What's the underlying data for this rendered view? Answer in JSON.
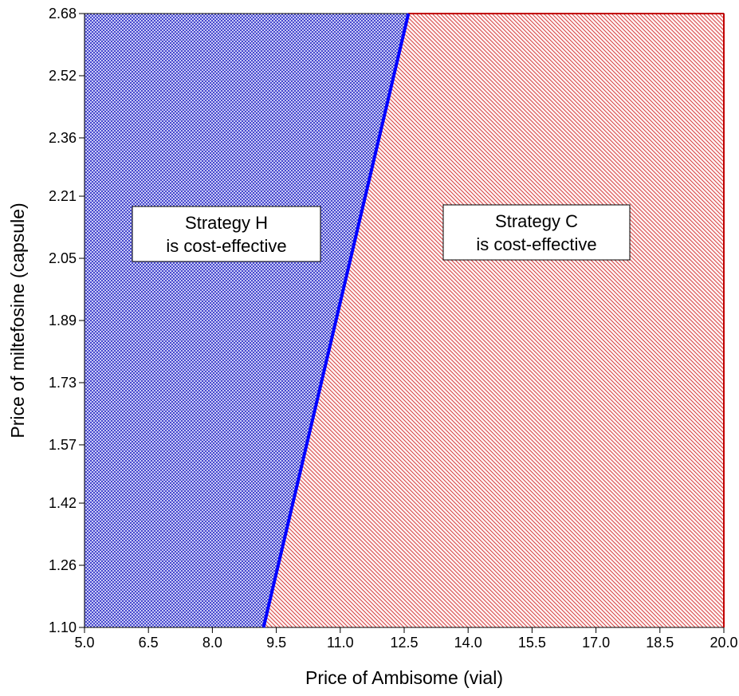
{
  "chart_data": {
    "type": "area",
    "xlabel": "Price of Ambisome (vial)",
    "ylabel": "Price of miltefosine (capsule)",
    "xlim": [
      5.0,
      20.0
    ],
    "ylim": [
      1.1,
      2.68
    ],
    "x_ticks": [
      "5.0",
      "6.5",
      "8.0",
      "9.5",
      "11.0",
      "12.5",
      "14.0",
      "15.5",
      "17.0",
      "18.5",
      "20.0"
    ],
    "y_ticks": [
      "1.10",
      "1.26",
      "1.42",
      "1.57",
      "1.73",
      "1.89",
      "2.05",
      "2.21",
      "2.36",
      "2.52",
      "2.68"
    ],
    "boundary": {
      "x": [
        9.2,
        12.6
      ],
      "y": [
        1.1,
        2.68
      ]
    },
    "regions": [
      {
        "side": "left",
        "color": "#0000c8",
        "pattern": "crosshatch",
        "label_lines": [
          "Strategy H",
          "is cost-effective"
        ]
      },
      {
        "side": "right",
        "color": "#c80000",
        "pattern": "diagonal",
        "label_lines": [
          "Strategy C",
          "is cost-effective"
        ]
      }
    ],
    "boundary_color": "#0000ff",
    "grid": false
  }
}
